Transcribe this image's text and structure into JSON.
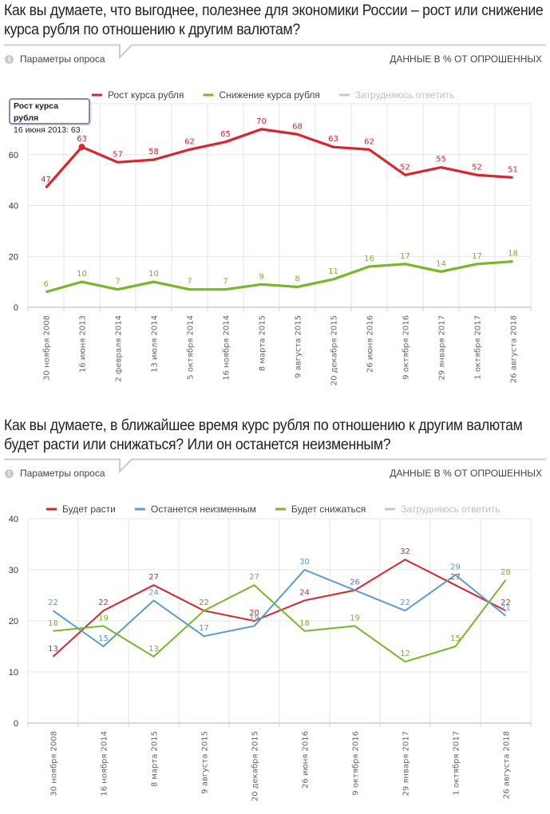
{
  "sections": [
    {
      "question": "Как вы думаете, что выгоднее, полезнее для экономики России – рост или снижение курса рубля по отношению к другим валютам?",
      "params_label": "Параметры опроса",
      "units_label": "ДАННЫЕ В % ОТ ОПРОШЕННЫХ",
      "tooltip": {
        "title": "Рост курса рубля",
        "value": "16 июня 2013: 63"
      }
    },
    {
      "question": "Как вы думаете, в ближайшее время курс рубля по отношению к другим валютам будет расти или снижаться? Или он останется неизменным?",
      "params_label": "Параметры опроса",
      "units_label": "ДАННЫЕ В % ОТ ОПРОШЕННЫХ"
    }
  ],
  "chart_data": [
    {
      "type": "line",
      "title": "Как вы думаете, что выгоднее, полезнее для экономики России – рост или снижение курса рубля по отношению к другим валютам?",
      "xlabel": "",
      "ylabel": "",
      "ylim": [
        0,
        80
      ],
      "yticks": [
        0,
        20,
        40,
        60
      ],
      "grid": true,
      "legend_position": "top-center",
      "categories": [
        "30 ноября 2008",
        "16 июня 2013",
        "2 февраля 2014",
        "13 июля 2014",
        "5 октября 2014",
        "16 ноября 2014",
        "8 марта 2015",
        "9 августа 2015",
        "20 декабря 2015",
        "26 июня 2016",
        "9 октября 2016",
        "29 января 2017",
        "1 октября 2017",
        "26 августа 2018"
      ],
      "series": [
        {
          "name": "Рост курса рубля",
          "color": "#d9252d",
          "values": [
            47,
            63,
            57,
            58,
            62,
            65,
            70,
            68,
            63,
            62,
            52,
            55,
            52,
            51
          ]
        },
        {
          "name": "Снижение курса рубля",
          "color": "#76b82a",
          "values": [
            6,
            10,
            7,
            10,
            7,
            7,
            9,
            8,
            11,
            16,
            17,
            14,
            17,
            18
          ]
        },
        {
          "name": "Затрудняюсь ответить",
          "color": "#c8c8c8",
          "values": [],
          "hidden": true
        }
      ],
      "highlight": {
        "series": 0,
        "index": 1
      }
    },
    {
      "type": "line",
      "title": "Как вы думаете, в ближайшее время курс рубля по отношению к другим валютам будет расти или снижаться? Или он останется неизменным?",
      "xlabel": "",
      "ylabel": "",
      "ylim": [
        0,
        40
      ],
      "yticks": [
        0,
        10,
        20,
        30,
        40
      ],
      "grid": true,
      "legend_position": "top-center",
      "categories": [
        "30 ноября 2008",
        "16 ноября 2014",
        "8 марта 2015",
        "9 августа 2015",
        "20 декабря 2015",
        "26 июня 2016",
        "9 октября 2016",
        "29 января 2017",
        "1 октября 2017",
        "26 августа 2018"
      ],
      "series": [
        {
          "name": "Будет расти",
          "color": "#d9252d",
          "values": [
            13,
            22,
            27,
            22,
            20,
            24,
            26,
            32,
            27,
            22
          ]
        },
        {
          "name": "Останется неизменным",
          "color": "#5b9bd0",
          "values": [
            22,
            15,
            24,
            17,
            19,
            30,
            26,
            22,
            29,
            21
          ]
        },
        {
          "name": "Будет снижаться",
          "color": "#76b82a",
          "values": [
            18,
            19,
            13,
            22,
            27,
            18,
            19,
            12,
            15,
            28
          ]
        },
        {
          "name": "Затрудняюсь ответить",
          "color": "#c8c8c8",
          "values": [],
          "hidden": true
        }
      ]
    }
  ]
}
